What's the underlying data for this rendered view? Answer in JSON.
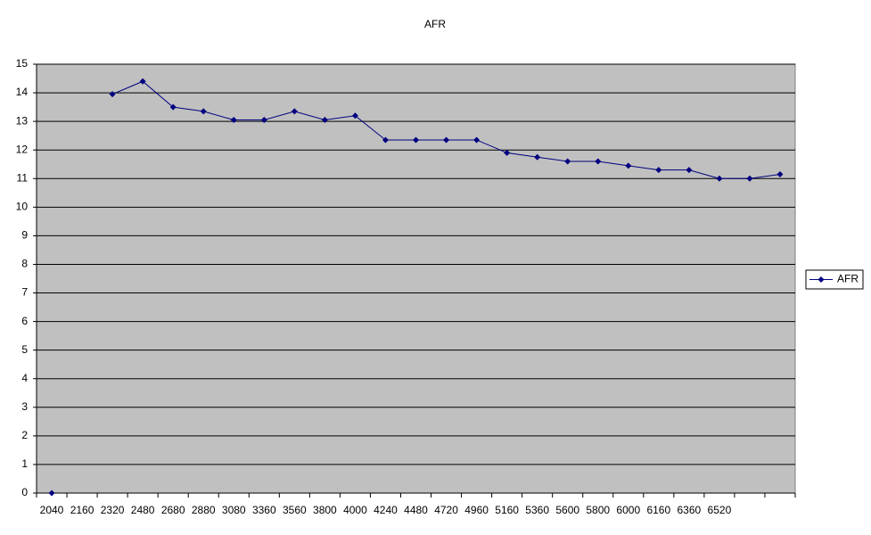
{
  "chart_data": {
    "type": "line",
    "title": "AFR",
    "categories": [
      "2040",
      "2160",
      "2320",
      "2480",
      "2680",
      "2880",
      "3080",
      "3360",
      "3560",
      "3800",
      "4000",
      "4240",
      "4480",
      "4720",
      "4960",
      "5160",
      "5360",
      "5600",
      "5800",
      "6000",
      "6160",
      "6360",
      "6520",
      null,
      null
    ],
    "series": [
      {
        "name": "AFR",
        "color": "#000080",
        "values": [
          0,
          null,
          13.95,
          14.4,
          13.5,
          13.35,
          13.05,
          13.05,
          13.35,
          13.05,
          13.2,
          12.35,
          12.35,
          12.35,
          12.35,
          11.9,
          11.75,
          11.6,
          11.6,
          11.45,
          11.3,
          11.3,
          11.0,
          11.0,
          11.15
        ]
      }
    ],
    "ylim": [
      0,
      15
    ],
    "yticks": [
      0,
      1,
      2,
      3,
      4,
      5,
      6,
      7,
      8,
      9,
      10,
      11,
      12,
      13,
      14,
      15
    ],
    "grid": true,
    "legend": "right"
  }
}
